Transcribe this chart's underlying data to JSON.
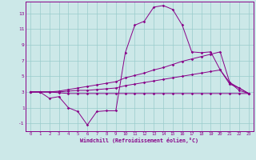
{
  "xlabel": "Windchill (Refroidissement éolien,°C)",
  "background_color": "#cce8e8",
  "line_color": "#880088",
  "grid_color": "#99cccc",
  "xlim": [
    -0.5,
    23.5
  ],
  "ylim": [
    -2.0,
    14.5
  ],
  "xticks": [
    0,
    1,
    2,
    3,
    4,
    5,
    6,
    7,
    8,
    9,
    10,
    11,
    12,
    13,
    14,
    15,
    16,
    17,
    18,
    19,
    20,
    21,
    22,
    23
  ],
  "yticks": [
    -1,
    1,
    3,
    5,
    7,
    9,
    11,
    13
  ],
  "series": [
    [
      3.0,
      3.0,
      2.2,
      2.4,
      1.0,
      0.5,
      -1.2,
      0.5,
      0.6,
      0.6,
      8.0,
      11.5,
      12.0,
      13.8,
      14.0,
      13.5,
      11.5,
      8.1,
      8.0,
      8.1,
      5.8,
      4.2,
      3.2,
      2.8
    ],
    [
      3.0,
      3.0,
      3.0,
      3.1,
      3.3,
      3.5,
      3.7,
      3.9,
      4.1,
      4.3,
      4.8,
      5.1,
      5.4,
      5.8,
      6.1,
      6.5,
      6.9,
      7.2,
      7.5,
      7.8,
      8.1,
      4.2,
      3.5,
      2.8
    ],
    [
      3.0,
      3.0,
      3.0,
      3.0,
      3.1,
      3.2,
      3.2,
      3.3,
      3.4,
      3.5,
      3.8,
      4.0,
      4.2,
      4.4,
      4.6,
      4.8,
      5.0,
      5.2,
      5.4,
      5.6,
      5.8,
      4.0,
      3.5,
      2.8
    ],
    [
      3.0,
      3.0,
      3.0,
      2.9,
      2.8,
      2.8,
      2.8,
      2.8,
      2.8,
      2.8,
      2.8,
      2.8,
      2.8,
      2.8,
      2.8,
      2.8,
      2.8,
      2.8,
      2.8,
      2.8,
      2.8,
      2.8,
      2.8,
      2.8
    ]
  ]
}
